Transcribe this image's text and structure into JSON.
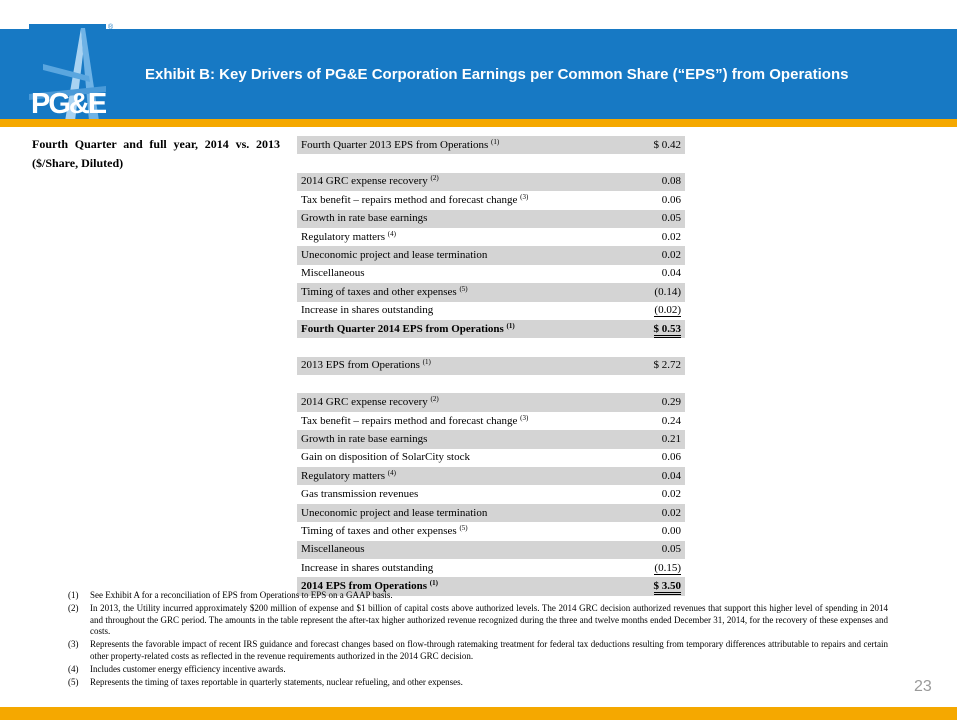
{
  "header": {
    "title": "Exhibit B: Key Drivers of PG&E Corporation Earnings per Common Share (“EPS”) from Operations",
    "logo_text": "PG&E",
    "registered_mark": "®",
    "brand_color": "#1779c4",
    "accent_color": "#f5a800"
  },
  "subtitle": "Fourth Quarter and full year, 2014 vs. 2013 ($/Share, Diluted)",
  "table": {
    "rows": [
      {
        "label": "Fourth Quarter 2013 EPS from Operations",
        "note": "(1)",
        "value": "$ 0.42"
      },
      {
        "label": "",
        "note": "",
        "value": ""
      },
      {
        "label": "2014 GRC expense recovery",
        "note": "(2)",
        "value": "0.08"
      },
      {
        "label": "Tax benefit – repairs method and forecast change",
        "note": "(3)",
        "value": "0.06"
      },
      {
        "label": "Growth in rate base earnings",
        "note": "",
        "value": "0.05"
      },
      {
        "label": "Regulatory matters",
        "note": "(4)",
        "value": "0.02"
      },
      {
        "label": "Uneconomic project and lease termination",
        "note": "",
        "value": "0.02"
      },
      {
        "label": "Miscellaneous",
        "note": "",
        "value": "0.04"
      },
      {
        "label": "Timing of taxes and other expenses",
        "note": "(5)",
        "value": "(0.14)"
      },
      {
        "label": "Increase in shares outstanding",
        "note": "",
        "value": "(0.02)"
      },
      {
        "label": "Fourth Quarter 2014 EPS from Operations",
        "note": "(1)",
        "value": "$ 0.53"
      },
      {
        "label": "",
        "note": "",
        "value": ""
      },
      {
        "label": "2013 EPS from Operations",
        "note": "(1)",
        "value": "$ 2.72"
      },
      {
        "label": "",
        "note": "",
        "value": ""
      },
      {
        "label": "2014 GRC expense recovery",
        "note": "(2)",
        "value": "0.29"
      },
      {
        "label": "Tax benefit – repairs method and forecast change",
        "note": "(3)",
        "value": "0.24"
      },
      {
        "label": "Growth in rate base earnings",
        "note": "",
        "value": "0.21"
      },
      {
        "label": "Gain on disposition of SolarCity stock",
        "note": "",
        "value": "0.06"
      },
      {
        "label": "Regulatory matters",
        "note": "(4)",
        "value": "0.04"
      },
      {
        "label": "Gas transmission revenues",
        "note": "",
        "value": "0.02"
      },
      {
        "label": "Uneconomic project and lease termination",
        "note": "",
        "value": "0.02"
      },
      {
        "label": "Timing of taxes and other expenses",
        "note": "(5)",
        "value": "0.00"
      },
      {
        "label": "Miscellaneous",
        "note": "",
        "value": "0.05"
      },
      {
        "label": "Increase in shares outstanding",
        "note": "",
        "value": "(0.15)"
      },
      {
        "label": "2014 EPS from Operations",
        "note": "(1)",
        "value": "$ 3.50"
      }
    ]
  },
  "footnotes": [
    {
      "num": "(1)",
      "text": "See Exhibit A for a reconciliation of EPS from Operations to EPS on a GAAP basis."
    },
    {
      "num": "(2)",
      "text": "In 2013, the Utility incurred approximately $200 million of expense and $1 billion of capital costs above authorized levels. The 2014 GRC decision authorized revenues that support this higher level of spending in 2014 and throughout the GRC period. The amounts in the table represent the after-tax higher authorized revenue recognized during the three and twelve months ended December 31, 2014, for the recovery of these expenses and costs."
    },
    {
      "num": "(3)",
      "text": "Represents the favorable impact of recent IRS guidance and forecast changes based on flow-through ratemaking treatment for federal tax deductions resulting from temporary differences attributable to repairs and certain other property-related costs as reflected in the revenue requirements authorized in the 2014 GRC decision."
    },
    {
      "num": "(4)",
      "text": "Includes customer energy efficiency incentive awards."
    },
    {
      "num": "(5)",
      "text": "Represents the timing of taxes reportable in quarterly statements, nuclear refueling, and other expenses."
    }
  ],
  "page_number": "23"
}
